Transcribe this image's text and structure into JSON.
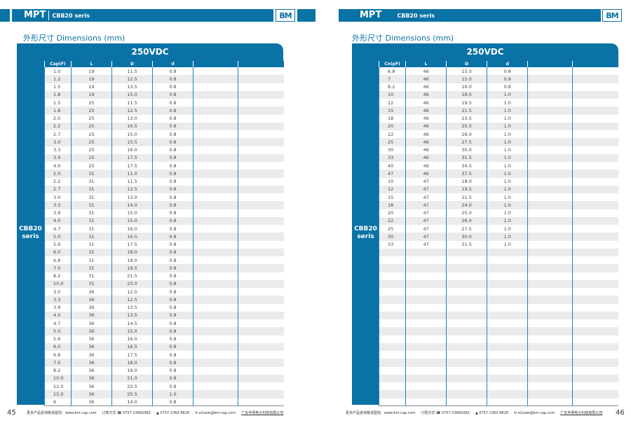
{
  "header": {
    "brand": "MPT",
    "series": "CBB20 seris",
    "logo": "BM"
  },
  "section_title": "外形尺寸 Dimensions (mm)",
  "voltage": "250VDC",
  "side_label": "CBB20 seris",
  "columns": [
    "Cap(F)",
    "L",
    "D",
    "d",
    "",
    ""
  ],
  "columns_right": [
    "Cn(pF)",
    "L",
    "D",
    "d",
    "",
    ""
  ],
  "left_table": [
    [
      "1.0",
      "19",
      "11.5",
      "0.8"
    ],
    [
      "1.2",
      "19",
      "12.5",
      "0.8"
    ],
    [
      "1.5",
      "19",
      "13.5",
      "0.8"
    ],
    [
      "1.8",
      "19",
      "15.0",
      "0.8"
    ],
    [
      "1.5",
      "25",
      "11.5",
      "0.8"
    ],
    [
      "1.8",
      "25",
      "12.5",
      "0.8"
    ],
    [
      "2.0",
      "25",
      "13.0",
      "0.8"
    ],
    [
      "2.2",
      "25",
      "16.5",
      "0.8"
    ],
    [
      "2.7",
      "25",
      "15.0",
      "0.8"
    ],
    [
      "3.0",
      "25",
      "15.5",
      "0.8"
    ],
    [
      "3.3",
      "25",
      "16.0",
      "0.8"
    ],
    [
      "3.9",
      "25",
      "17.5",
      "0.8"
    ],
    [
      "4.0",
      "25",
      "17.5",
      "0.8"
    ],
    [
      "2.0",
      "31",
      "11.0",
      "0.8"
    ],
    [
      "2.2",
      "31",
      "11.5",
      "0.8"
    ],
    [
      "2.7",
      "31",
      "12.5",
      "0.8"
    ],
    [
      "3.0",
      "31",
      "13.0",
      "0.8"
    ],
    [
      "3.3",
      "31",
      "14.0",
      "0.8"
    ],
    [
      "3.9",
      "31",
      "15.0",
      "0.8"
    ],
    [
      "4.0",
      "31",
      "15.0",
      "0.8"
    ],
    [
      "4.7",
      "31",
      "16.0",
      "0.8"
    ],
    [
      "5.0",
      "31",
      "16.5",
      "0.8"
    ],
    [
      "5.6",
      "31",
      "17.5",
      "0.8"
    ],
    [
      "6.0",
      "31",
      "18.0",
      "0.8"
    ],
    [
      "6.8",
      "31",
      "19.0",
      "0.8"
    ],
    [
      "7.0",
      "31",
      "19.5",
      "0.8"
    ],
    [
      "8.2",
      "31",
      "21.5",
      "0.8"
    ],
    [
      "10.0",
      "31",
      "23.0",
      "0.8"
    ],
    [
      "3.0",
      "36",
      "12.0",
      "0.8"
    ],
    [
      "3.3",
      "36",
      "12.5",
      "0.8"
    ],
    [
      "3.9",
      "36",
      "13.5",
      "0.8"
    ],
    [
      "4.0",
      "36",
      "13.5",
      "0.8"
    ],
    [
      "4.7",
      "36",
      "14.5",
      "0.8"
    ],
    [
      "5.0",
      "36",
      "15.0",
      "0.8"
    ],
    [
      "5.6",
      "36",
      "16.0",
      "0.8"
    ],
    [
      "6.0",
      "36",
      "16.5",
      "0.8"
    ],
    [
      "6.8",
      "36",
      "17.5",
      "0.8"
    ],
    [
      "7.0",
      "36",
      "18.0",
      "0.8"
    ],
    [
      "8.2",
      "36",
      "19.0",
      "0.8"
    ],
    [
      "10.0",
      "36",
      "21.0",
      "0.8"
    ],
    [
      "12.0",
      "36",
      "22.5",
      "0.8"
    ],
    [
      "15.0",
      "36",
      "25.5",
      "1.0"
    ],
    [
      "6",
      "36",
      "14.0",
      "0.8"
    ]
  ],
  "right_table": [
    [
      "6.8",
      "46",
      "15.0",
      "0.8"
    ],
    [
      "7",
      "46",
      "15.0",
      "0.8"
    ],
    [
      "8.2",
      "46",
      "16.0",
      "0.8"
    ],
    [
      "10",
      "46",
      "18.0",
      "1.0"
    ],
    [
      "12",
      "46",
      "19.5",
      "1.0"
    ],
    [
      "15",
      "46",
      "21.5",
      "1.0"
    ],
    [
      "18",
      "46",
      "23.5",
      "1.0"
    ],
    [
      "20",
      "46",
      "25.0",
      "1.0"
    ],
    [
      "22",
      "46",
      "26.0",
      "1.0"
    ],
    [
      "25",
      "46",
      "27.5",
      "1.0"
    ],
    [
      "30",
      "46",
      "30.0",
      "1.0"
    ],
    [
      "33",
      "46",
      "31.5",
      "1.0"
    ],
    [
      "40",
      "46",
      "34.5",
      "1.0"
    ],
    [
      "47",
      "46",
      "37.5",
      "1.0"
    ],
    [
      "10",
      "47",
      "18.0",
      "1.0"
    ],
    [
      "12",
      "47",
      "19.5",
      "1.0"
    ],
    [
      "15",
      "47",
      "21.5",
      "1.0"
    ],
    [
      "18",
      "47",
      "24.0",
      "1.0"
    ],
    [
      "20",
      "47",
      "25.0",
      "1.0"
    ],
    [
      "22",
      "47",
      "26.0",
      "1.0"
    ],
    [
      "25",
      "47",
      "27.5",
      "1.0"
    ],
    [
      "30",
      "47",
      "30.0",
      "1.0"
    ],
    [
      "33",
      "47",
      "31.5",
      "1.0"
    ]
  ],
  "footer": {
    "more": "更多产品咨询敬请登陆：www.bm-cap.com",
    "order": "订购方式",
    "tel": "0757-23682982",
    "fax": "0757-2360 8828",
    "email": "e2sale@bm-cap.com",
    "company": "广东丰明电子科技有限公司"
  },
  "page_left": "45",
  "page_right": "46",
  "colors": {
    "accent": "#0b72a5",
    "row_alt": "#ebebeb"
  }
}
